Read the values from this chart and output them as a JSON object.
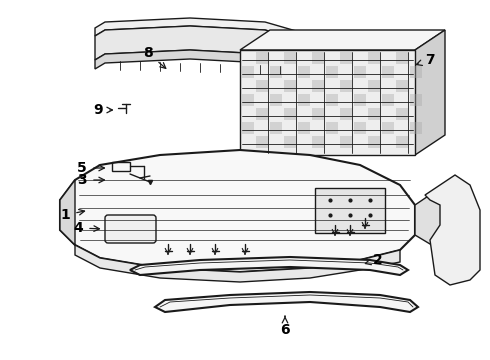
{
  "bg_color": "#ffffff",
  "line_color": "#1a1a1a",
  "label_color": "#000000",
  "label_fontsize": 10,
  "figsize": [
    4.9,
    3.6
  ],
  "dpi": 100,
  "lw_main": 1.0,
  "lw_thick": 1.5,
  "lw_thin": 0.6
}
